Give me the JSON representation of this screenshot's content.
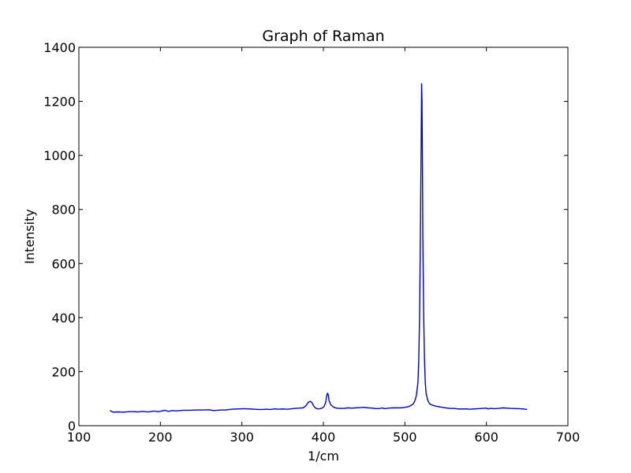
{
  "chart_data": {
    "type": "line",
    "title": "Graph of Raman",
    "xlabel": "1/cm",
    "ylabel": "Intensity",
    "xlim": [
      100,
      700
    ],
    "ylim": [
      0,
      1400
    ],
    "xticks": [
      100,
      200,
      300,
      400,
      500,
      600,
      700
    ],
    "yticks": [
      0,
      200,
      400,
      600,
      800,
      1000,
      1200,
      1400
    ],
    "grid": false,
    "colors": {
      "series": "#0000cc"
    },
    "series": [
      {
        "x": [
          138,
          142,
          148,
          155,
          162,
          168,
          172,
          178,
          185,
          192,
          198,
          205,
          210,
          215,
          220,
          228,
          236,
          245,
          252,
          260,
          265,
          270,
          275,
          280,
          288,
          295,
          303,
          310,
          315,
          320,
          325,
          330,
          335,
          340,
          345,
          350,
          355,
          360,
          365,
          370,
          375,
          378,
          380,
          382,
          384,
          386,
          388,
          390,
          393,
          396,
          399,
          401,
          403,
          404,
          405,
          406,
          407,
          409,
          411,
          413,
          416,
          420,
          425,
          430,
          435,
          440,
          445,
          450,
          455,
          460,
          465,
          470,
          472,
          475,
          480,
          485,
          490,
          495,
          500,
          504,
          507,
          510,
          512,
          514,
          516,
          517,
          518,
          519,
          520,
          520.5,
          521,
          521.5,
          522,
          523,
          524,
          525,
          526,
          528,
          530,
          532,
          535,
          538,
          542,
          546,
          550,
          555,
          560,
          565,
          570,
          575,
          580,
          585,
          590,
          595,
          600,
          602,
          605,
          610,
          615,
          620,
          625,
          630,
          640,
          645,
          650
        ],
        "y": [
          56,
          50,
          51,
          50,
          52,
          52,
          51,
          53,
          51,
          54,
          52,
          57,
          53,
          56,
          55,
          57,
          57,
          58,
          58,
          59,
          56,
          57,
          58,
          58,
          61,
          62,
          63,
          62,
          61,
          60,
          60,
          61,
          60,
          62,
          61,
          62,
          61,
          62,
          64,
          65,
          66,
          72,
          80,
          88,
          90,
          85,
          73,
          66,
          62,
          63,
          66,
          72,
          88,
          110,
          120,
          115,
          92,
          78,
          72,
          68,
          65,
          64,
          64,
          66,
          65,
          66,
          67,
          68,
          66,
          65,
          63,
          64,
          66,
          63,
          65,
          66,
          66,
          66,
          68,
          70,
          74,
          80,
          90,
          110,
          160,
          240,
          400,
          700,
          1050,
          1265,
          1200,
          1000,
          700,
          420,
          250,
          160,
          120,
          95,
          82,
          78,
          75,
          72,
          70,
          68,
          66,
          64,
          64,
          62,
          62,
          62,
          61,
          62,
          63,
          64,
          65,
          62,
          64,
          63,
          64,
          66,
          65,
          64,
          63,
          62,
          60
        ]
      }
    ]
  }
}
